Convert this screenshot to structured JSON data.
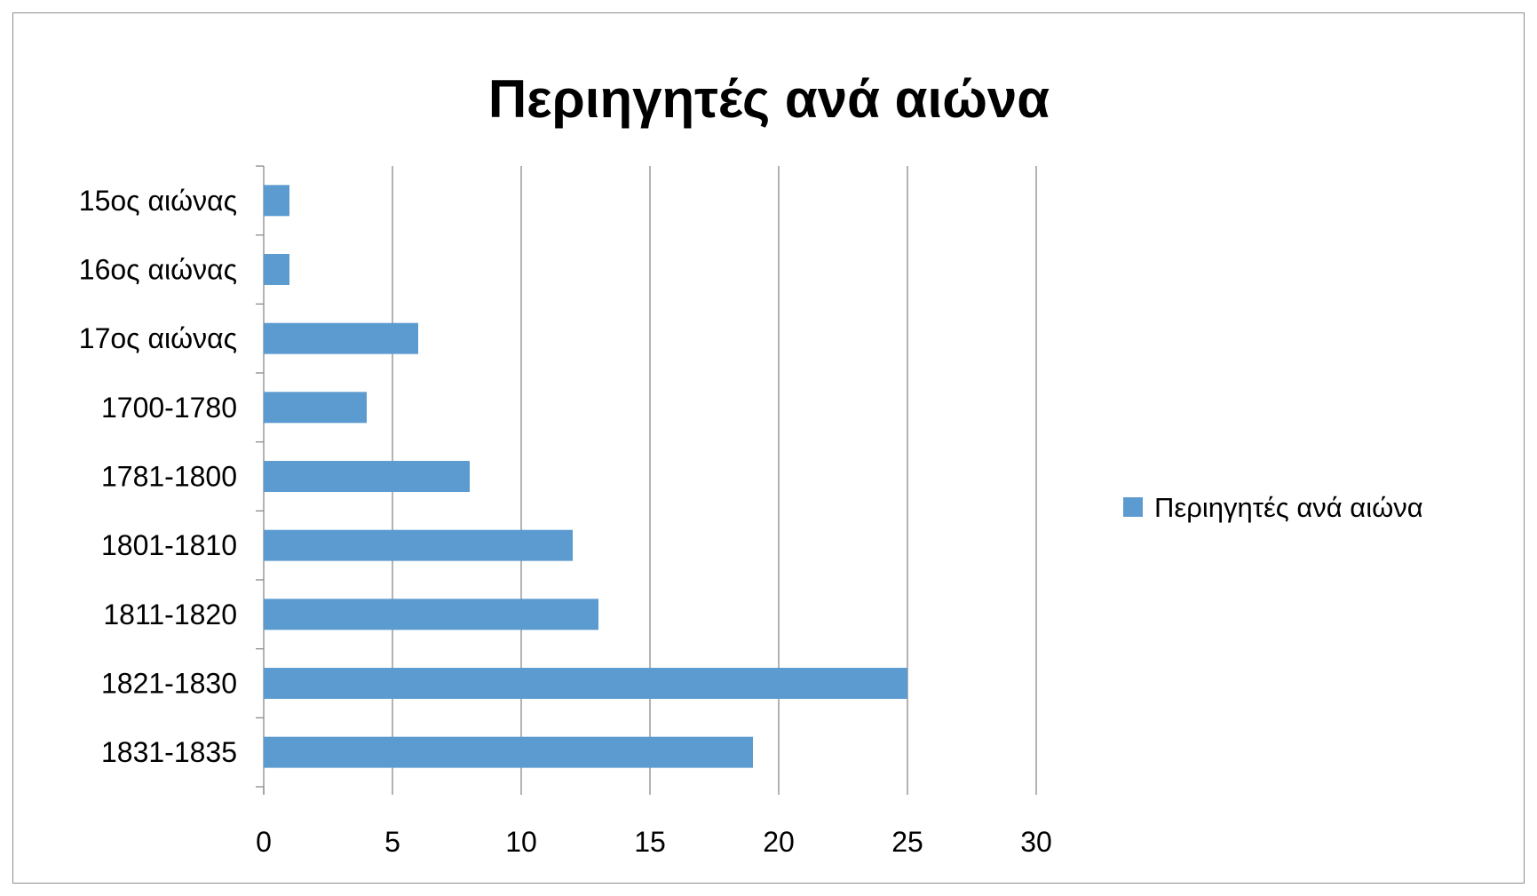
{
  "colors": {
    "bar": "#5b9bd0",
    "gridline": "#8a8a8a",
    "frame": "#8c8c8c"
  },
  "chart_data": {
    "type": "bar",
    "orientation": "horizontal",
    "title": "Περιηγητές ανά αιώνα",
    "categories": [
      "15ος αιώνας",
      "16ος αιώνας",
      "17ος αιώνας",
      "1700-1780",
      "1781-1800",
      "1801-1810",
      "1811-1820",
      "1821-1830",
      "1831-1835"
    ],
    "series": [
      {
        "name": "Περιηγητές ανά αιώνα",
        "values": [
          1,
          1,
          6,
          4,
          8,
          12,
          13,
          25,
          19
        ]
      }
    ],
    "xlabel": "",
    "ylabel": "",
    "xlim": [
      0,
      30
    ],
    "xticks": [
      0,
      5,
      10,
      15,
      20,
      25,
      30
    ],
    "grid": "vertical major gridlines",
    "legend": "right"
  }
}
